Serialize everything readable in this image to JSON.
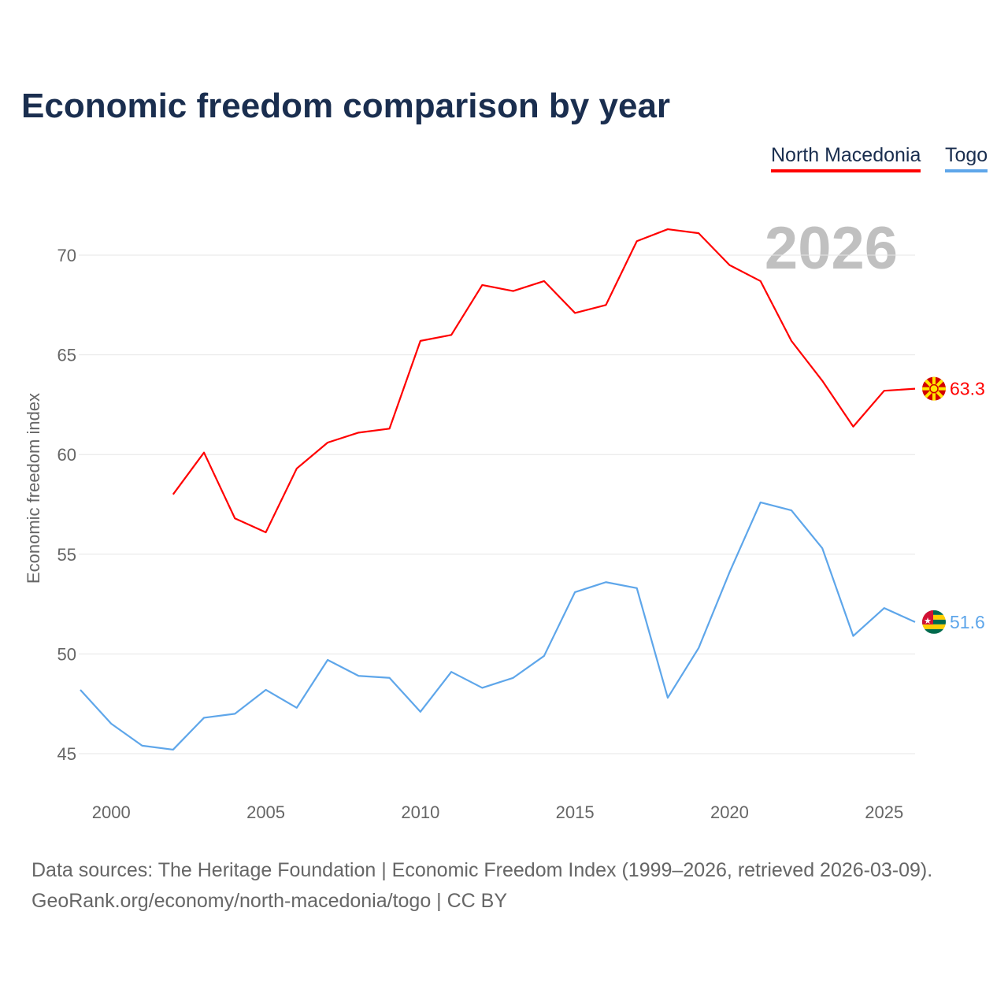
{
  "title": "Economic freedom comparison by year",
  "footer": {
    "line1": "Data sources: The Heritage Foundation | Economic Freedom Index (1999–2026, retrieved 2026-03-09).",
    "line2": "GeoRank.org/economy/north-macedonia/togo | CC BY"
  },
  "chart_data": {
    "type": "line",
    "title": "Economic freedom comparison by year",
    "ylabel": "Economic freedom index",
    "xlabel": "",
    "year_label": "2026",
    "xlim": [
      1999,
      2026
    ],
    "ylim": [
      45,
      70
    ],
    "xticks": [
      2000,
      2005,
      2010,
      2015,
      2020,
      2025
    ],
    "yticks": [
      45,
      50,
      55,
      60,
      65,
      70
    ],
    "grid": true,
    "legend_position": "top-right",
    "series": [
      {
        "name": "North Macedonia",
        "color": "#ff0000",
        "end_label": "63.3",
        "flag": "north-macedonia-flag",
        "x": [
          2002,
          2003,
          2004,
          2005,
          2006,
          2007,
          2008,
          2009,
          2010,
          2011,
          2012,
          2013,
          2014,
          2015,
          2016,
          2017,
          2018,
          2019,
          2020,
          2021,
          2022,
          2023,
          2024,
          2025,
          2026
        ],
        "values": [
          58.0,
          60.1,
          56.8,
          56.1,
          59.3,
          60.6,
          61.1,
          61.3,
          65.7,
          66.0,
          68.5,
          68.2,
          68.7,
          67.1,
          67.5,
          70.7,
          71.3,
          71.1,
          69.5,
          68.7,
          65.7,
          63.7,
          61.4,
          63.2,
          63.3
        ]
      },
      {
        "name": "Togo",
        "color": "#5ea6ea",
        "end_label": "51.6",
        "flag": "togo-flag",
        "x": [
          1999,
          2000,
          2001,
          2002,
          2003,
          2004,
          2005,
          2006,
          2007,
          2008,
          2009,
          2010,
          2011,
          2012,
          2013,
          2014,
          2015,
          2016,
          2017,
          2018,
          2019,
          2020,
          2021,
          2022,
          2023,
          2024,
          2025,
          2026
        ],
        "values": [
          48.2,
          46.5,
          45.4,
          45.2,
          46.8,
          47.0,
          48.2,
          47.3,
          49.7,
          48.9,
          48.8,
          47.1,
          49.1,
          48.3,
          48.8,
          49.9,
          53.1,
          53.6,
          53.3,
          47.8,
          50.3,
          54.1,
          57.6,
          57.2,
          55.3,
          50.9,
          52.3,
          51.6
        ]
      }
    ]
  }
}
